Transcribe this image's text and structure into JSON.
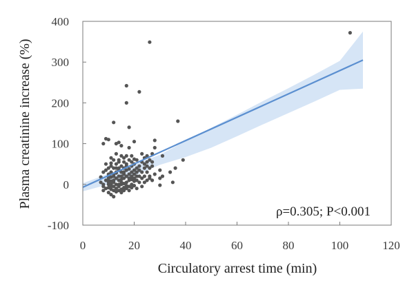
{
  "chart_data": {
    "type": "scatter",
    "xlabel": "Circulatory arrest time (min)",
    "ylabel": "Plasma creatinine increase (%)",
    "xlim": [
      0,
      120
    ],
    "ylim": [
      -100,
      400
    ],
    "x_ticks": [
      0,
      20,
      40,
      60,
      80,
      100,
      120
    ],
    "y_ticks": [
      -100,
      0,
      100,
      200,
      300,
      400
    ],
    "grid": false,
    "annotation": "ρ=0.305; P<0.001",
    "colors": {
      "points": "#555555",
      "trend_line": "#5b8fd0",
      "confidence_band": "#cfe0f5",
      "axis": "#7a7a7a"
    },
    "trend_line": {
      "x": [
        0,
        109
      ],
      "y": [
        -7,
        305
      ]
    },
    "confidence_band": {
      "x": [
        0,
        10,
        20,
        30,
        40,
        50,
        60,
        70,
        80,
        90,
        100,
        109
      ],
      "upper": [
        3,
        26,
        48,
        73,
        106,
        139,
        171,
        204,
        236,
        269,
        303,
        375
      ],
      "lower": [
        -17,
        0,
        21,
        48,
        67,
        90,
        118,
        147,
        175,
        203,
        232,
        235
      ]
    },
    "points": [
      [
        7,
        18
      ],
      [
        7,
        5
      ],
      [
        8,
        0
      ],
      [
        8,
        -15
      ],
      [
        8,
        30
      ],
      [
        8,
        -5
      ],
      [
        8,
        100
      ],
      [
        9,
        10
      ],
      [
        9,
        35
      ],
      [
        9,
        -10
      ],
      [
        9,
        50
      ],
      [
        9,
        112
      ],
      [
        10,
        0
      ],
      [
        10,
        20
      ],
      [
        10,
        -20
      ],
      [
        10,
        5
      ],
      [
        10,
        40
      ],
      [
        10,
        15
      ],
      [
        10,
        25
      ],
      [
        10,
        -8
      ],
      [
        10,
        110
      ],
      [
        10,
        10
      ],
      [
        11,
        30
      ],
      [
        11,
        -25
      ],
      [
        11,
        8
      ],
      [
        11,
        52
      ],
      [
        11,
        -12
      ],
      [
        11,
        18
      ],
      [
        11,
        0
      ],
      [
        11,
        45
      ],
      [
        11,
        65
      ],
      [
        11,
        -5
      ],
      [
        12,
        152
      ],
      [
        12,
        -30
      ],
      [
        12,
        -5
      ],
      [
        12,
        40
      ],
      [
        12,
        20
      ],
      [
        12,
        10
      ],
      [
        12,
        60
      ],
      [
        12,
        25
      ],
      [
        12,
        -15
      ],
      [
        12,
        5
      ],
      [
        13,
        0
      ],
      [
        13,
        30
      ],
      [
        13,
        -10
      ],
      [
        13,
        15
      ],
      [
        13,
        50
      ],
      [
        13,
        75
      ],
      [
        13,
        100
      ],
      [
        13,
        40
      ],
      [
        13,
        -18
      ],
      [
        13,
        28
      ],
      [
        14,
        10
      ],
      [
        14,
        -5
      ],
      [
        14,
        40
      ],
      [
        14,
        20
      ],
      [
        14,
        60
      ],
      [
        14,
        103
      ],
      [
        14,
        0
      ],
      [
        14,
        -15
      ],
      [
        14,
        35
      ],
      [
        14,
        55
      ],
      [
        15,
        30
      ],
      [
        15,
        5
      ],
      [
        15,
        -12
      ],
      [
        15,
        20
      ],
      [
        15,
        45
      ],
      [
        15,
        70
      ],
      [
        15,
        0
      ],
      [
        15,
        -20
      ],
      [
        15,
        95
      ],
      [
        15,
        12
      ],
      [
        16,
        15
      ],
      [
        16,
        40
      ],
      [
        16,
        -8
      ],
      [
        16,
        55
      ],
      [
        16,
        25
      ],
      [
        16,
        65
      ],
      [
        16,
        2
      ],
      [
        16,
        30
      ],
      [
        16,
        -15
      ],
      [
        17,
        242
      ],
      [
        17,
        200
      ],
      [
        17,
        20
      ],
      [
        17,
        -10
      ],
      [
        17,
        50
      ],
      [
        17,
        35
      ],
      [
        17,
        70
      ],
      [
        17,
        5
      ],
      [
        17,
        45
      ],
      [
        17,
        -3
      ],
      [
        18,
        140
      ],
      [
        18,
        90
      ],
      [
        18,
        10
      ],
      [
        18,
        60
      ],
      [
        18,
        -15
      ],
      [
        18,
        25
      ],
      [
        18,
        38
      ],
      [
        18,
        15
      ],
      [
        18,
        -5
      ],
      [
        19,
        20
      ],
      [
        19,
        45
      ],
      [
        19,
        0
      ],
      [
        19,
        70
      ],
      [
        19,
        30
      ],
      [
        19,
        -8
      ],
      [
        19,
        12
      ],
      [
        19,
        55
      ],
      [
        20,
        105
      ],
      [
        20,
        35
      ],
      [
        20,
        15
      ],
      [
        20,
        50
      ],
      [
        20,
        -3
      ],
      [
        20,
        25
      ],
      [
        20,
        62
      ],
      [
        20,
        8
      ],
      [
        21,
        40
      ],
      [
        21,
        10
      ],
      [
        21,
        60
      ],
      [
        21,
        30
      ],
      [
        21,
        -10
      ],
      [
        21,
        20
      ],
      [
        22,
        227
      ],
      [
        22,
        20
      ],
      [
        22,
        45
      ],
      [
        22,
        5
      ],
      [
        22,
        35
      ],
      [
        23,
        30
      ],
      [
        23,
        55
      ],
      [
        23,
        -5
      ],
      [
        23,
        15
      ],
      [
        23,
        75
      ],
      [
        24,
        50
      ],
      [
        24,
        20
      ],
      [
        24,
        65
      ],
      [
        24,
        5
      ],
      [
        24,
        40
      ],
      [
        25,
        45
      ],
      [
        25,
        10
      ],
      [
        25,
        30
      ],
      [
        25,
        55
      ],
      [
        25,
        70
      ],
      [
        26,
        349
      ],
      [
        26,
        40
      ],
      [
        26,
        60
      ],
      [
        26,
        20
      ],
      [
        26,
        15
      ],
      [
        27,
        45
      ],
      [
        27,
        10
      ],
      [
        27,
        55
      ],
      [
        27,
        75
      ],
      [
        28,
        108
      ],
      [
        28,
        90
      ],
      [
        28,
        25
      ],
      [
        30,
        35
      ],
      [
        30,
        15
      ],
      [
        30,
        -2
      ],
      [
        31,
        70
      ],
      [
        31,
        20
      ],
      [
        34,
        30
      ],
      [
        35,
        5
      ],
      [
        36,
        40
      ],
      [
        37,
        155
      ],
      [
        39,
        60
      ],
      [
        104,
        372
      ]
    ]
  }
}
